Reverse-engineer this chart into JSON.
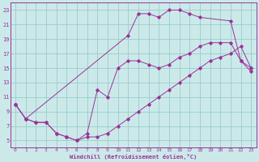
{
  "background_color": "#cce9e9",
  "grid_color": "#99cccc",
  "line_color": "#993399",
  "xlabel": "Windchill (Refroidissement éolien,°C)",
  "xlim": [
    -0.5,
    23.5
  ],
  "ylim": [
    4,
    24
  ],
  "xticks": [
    0,
    1,
    2,
    3,
    4,
    5,
    6,
    7,
    8,
    9,
    10,
    11,
    12,
    13,
    14,
    15,
    16,
    17,
    18,
    19,
    20,
    21,
    22,
    23
  ],
  "yticks": [
    5,
    7,
    9,
    11,
    13,
    15,
    17,
    19,
    21,
    23
  ],
  "curve_top_x": [
    0,
    1,
    11,
    12,
    13,
    14,
    15,
    16,
    17,
    18,
    21,
    22,
    23
  ],
  "curve_top_y": [
    10,
    8,
    19.5,
    22.5,
    22.5,
    22,
    23,
    23,
    22.5,
    22,
    21.5,
    16,
    14.5
  ],
  "curve_mid_x": [
    0,
    1,
    2,
    3,
    4,
    5,
    6,
    7,
    8,
    9,
    10,
    11,
    12,
    13,
    14,
    15,
    16,
    17,
    18,
    19,
    20,
    21,
    22,
    23
  ],
  "curve_mid_y": [
    10,
    8,
    7.5,
    7.5,
    6,
    5.5,
    5,
    6,
    12,
    11,
    15,
    16,
    16,
    15.5,
    15,
    15.5,
    16.5,
    17,
    18,
    18.5,
    18.5,
    18.5,
    16,
    15
  ],
  "curve_bot_x": [
    0,
    1,
    2,
    3,
    4,
    5,
    6,
    7,
    8,
    9,
    10,
    11,
    12,
    13,
    14,
    15,
    16,
    17,
    18,
    19,
    20,
    21,
    22,
    23
  ],
  "curve_bot_y": [
    10,
    8,
    7.5,
    7.5,
    6,
    5.5,
    5,
    5.5,
    5.5,
    6,
    7,
    8,
    9,
    10,
    11,
    12,
    13,
    14,
    15,
    16,
    16.5,
    17,
    18,
    15
  ]
}
